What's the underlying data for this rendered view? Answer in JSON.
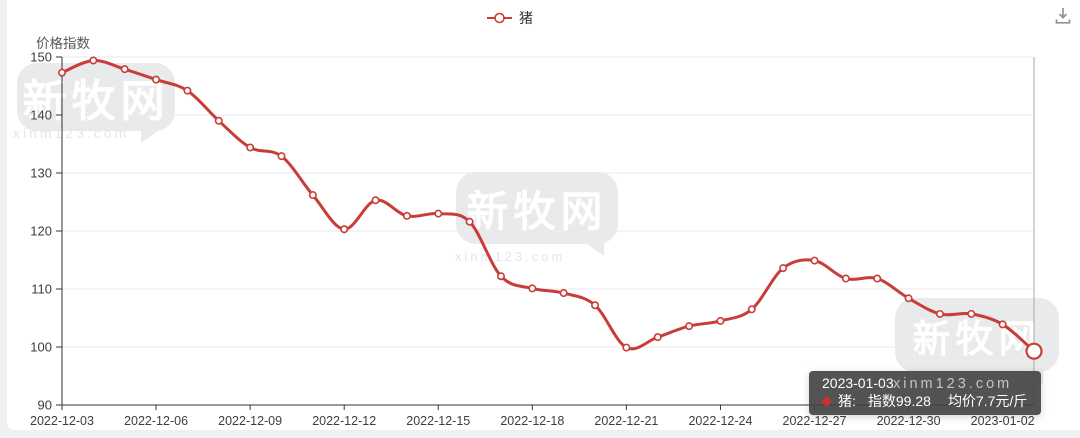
{
  "page": {
    "background": "#eef0f1",
    "card_background": "#ffffff"
  },
  "legend": {
    "label": "猪",
    "color": "#c83d38"
  },
  "axis_name": "价格指数",
  "toolbar": {
    "download_icon": "download"
  },
  "watermark": {
    "brand": "新牧网",
    "site": "xinm123.com"
  },
  "tooltip": {
    "date": "2023-01-03",
    "series_name": "猪:",
    "index_text": "指数99.28",
    "price_text": "均价7.7元/斤",
    "marker_color": "#c5342f",
    "background": "#404040"
  },
  "chart_data": {
    "type": "line",
    "title": "",
    "ylabel": "价格指数",
    "xlabel": "",
    "ylim": [
      90,
      150
    ],
    "yticks": [
      90,
      100,
      110,
      120,
      130,
      140,
      150
    ],
    "grid": true,
    "smooth": true,
    "legend_position": "top-center",
    "x_tick_interval": 3,
    "x": [
      "2022-12-03",
      "2022-12-04",
      "2022-12-05",
      "2022-12-06",
      "2022-12-07",
      "2022-12-08",
      "2022-12-09",
      "2022-12-10",
      "2022-12-11",
      "2022-12-12",
      "2022-12-13",
      "2022-12-14",
      "2022-12-15",
      "2022-12-16",
      "2022-12-17",
      "2022-12-18",
      "2022-12-19",
      "2022-12-20",
      "2022-12-21",
      "2022-12-22",
      "2022-12-23",
      "2022-12-24",
      "2022-12-25",
      "2022-12-26",
      "2022-12-27",
      "2022-12-28",
      "2022-12-29",
      "2022-12-30",
      "2022-12-31",
      "2023-01-01",
      "2023-01-02",
      "2023-01-03"
    ],
    "series": [
      {
        "name": "猪",
        "color": "#c83d38",
        "values": [
          147.3,
          149.4,
          147.9,
          146.1,
          144.2,
          139.0,
          134.4,
          132.9,
          126.2,
          120.3,
          125.3,
          122.6,
          123.0,
          121.6,
          112.2,
          110.1,
          109.3,
          107.2,
          99.9,
          101.7,
          103.6,
          104.5,
          106.5,
          113.6,
          114.9,
          111.8,
          111.8,
          108.4,
          105.7,
          105.7,
          103.9,
          99.28
        ]
      }
    ],
    "highlight_index": 31,
    "axis_color": "#333333",
    "gridline_color": "#e8e8e8",
    "axis_pointer_color": "#a8a8a8"
  }
}
